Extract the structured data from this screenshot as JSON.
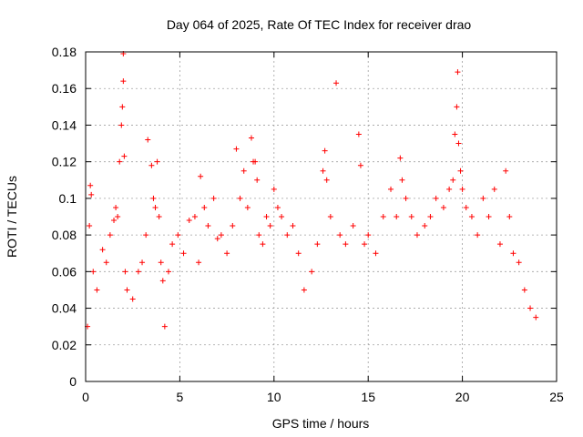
{
  "chart_data": {
    "type": "scatter",
    "title": "Day 064 of 2025, Rate Of TEC Index for receiver drao",
    "xlabel": "GPS time / hours",
    "ylabel": "ROTI / TECUs",
    "xlim": [
      0,
      25
    ],
    "ylim": [
      0,
      0.18
    ],
    "x_ticks": [
      0,
      5,
      10,
      15,
      20,
      25
    ],
    "x_tick_labels": [
      "0",
      "5",
      "10",
      "15",
      "20",
      "25"
    ],
    "y_ticks": [
      0,
      0.02,
      0.04,
      0.06,
      0.08,
      0.1,
      0.12,
      0.14,
      0.16,
      0.18
    ],
    "y_tick_labels": [
      "0",
      "0.02",
      "0.04",
      "0.06",
      "0.08",
      "0.1",
      "0.12",
      "0.14",
      "0.16",
      "0.18"
    ],
    "grid": true,
    "marker": "+",
    "color": "#ff0000",
    "series": [
      {
        "x": [
          0.1,
          0.2,
          0.25,
          0.3,
          0.4,
          0.6,
          0.9,
          1.1,
          1.3,
          1.5,
          1.6,
          1.7,
          1.8,
          1.9,
          1.95,
          2.0,
          2.0,
          2.05,
          2.1,
          2.2,
          2.5,
          2.8,
          3.0,
          3.2,
          3.3,
          3.5,
          3.6,
          3.7,
          3.8,
          3.9,
          4.0,
          4.1,
          4.2,
          4.4,
          4.6,
          4.9,
          5.2,
          5.5,
          5.8,
          6.0,
          6.1,
          6.3,
          6.5,
          6.8,
          7.0,
          7.2,
          7.5,
          7.8,
          8.0,
          8.2,
          8.4,
          8.6,
          8.8,
          8.9,
          9.0,
          9.1,
          9.2,
          9.4,
          9.6,
          9.8,
          10.0,
          10.2,
          10.4,
          10.7,
          11.0,
          11.3,
          11.6,
          12.0,
          12.3,
          12.6,
          12.7,
          12.8,
          13.0,
          13.3,
          13.5,
          13.8,
          14.2,
          14.5,
          14.6,
          14.8,
          15.0,
          15.4,
          15.8,
          16.2,
          16.5,
          16.7,
          16.8,
          17.0,
          17.3,
          17.6,
          18.0,
          18.3,
          18.6,
          19.0,
          19.3,
          19.5,
          19.6,
          19.7,
          19.75,
          19.8,
          19.9,
          20.0,
          20.2,
          20.5,
          20.8,
          21.1,
          21.4,
          21.7,
          22.0,
          22.3,
          22.5,
          22.7,
          23.0,
          23.3,
          23.6,
          23.9
        ],
        "y": [
          0.03,
          0.085,
          0.107,
          0.102,
          0.06,
          0.05,
          0.072,
          0.065,
          0.08,
          0.088,
          0.095,
          0.09,
          0.12,
          0.14,
          0.15,
          0.164,
          0.179,
          0.123,
          0.06,
          0.05,
          0.045,
          0.06,
          0.065,
          0.08,
          0.132,
          0.118,
          0.1,
          0.095,
          0.12,
          0.09,
          0.065,
          0.055,
          0.03,
          0.06,
          0.075,
          0.08,
          0.07,
          0.088,
          0.09,
          0.065,
          0.112,
          0.095,
          0.085,
          0.1,
          0.078,
          0.08,
          0.07,
          0.085,
          0.127,
          0.1,
          0.115,
          0.095,
          0.133,
          0.12,
          0.12,
          0.11,
          0.08,
          0.075,
          0.09,
          0.085,
          0.105,
          0.095,
          0.09,
          0.08,
          0.085,
          0.07,
          0.05,
          0.06,
          0.075,
          0.115,
          0.126,
          0.11,
          0.09,
          0.163,
          0.08,
          0.075,
          0.085,
          0.135,
          0.118,
          0.075,
          0.08,
          0.07,
          0.09,
          0.105,
          0.09,
          0.122,
          0.11,
          0.1,
          0.09,
          0.08,
          0.085,
          0.09,
          0.1,
          0.095,
          0.105,
          0.11,
          0.135,
          0.15,
          0.169,
          0.13,
          0.115,
          0.105,
          0.095,
          0.09,
          0.08,
          0.1,
          0.09,
          0.105,
          0.075,
          0.115,
          0.09,
          0.07,
          0.065,
          0.05,
          0.04,
          0.035
        ]
      }
    ]
  }
}
